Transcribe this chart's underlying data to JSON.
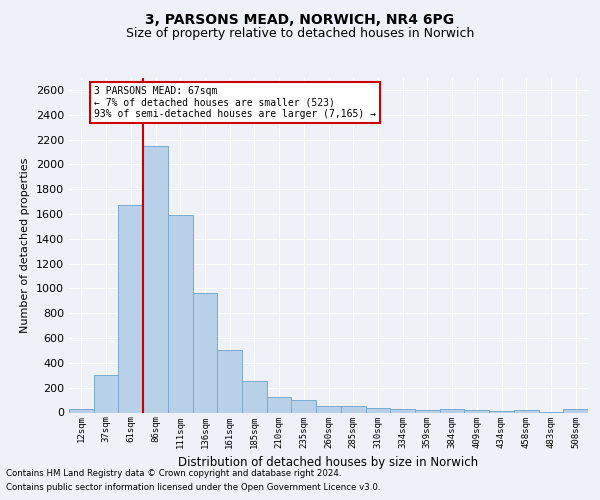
{
  "title": "3, PARSONS MEAD, NORWICH, NR4 6PG",
  "subtitle": "Size of property relative to detached houses in Norwich",
  "xlabel": "Distribution of detached houses by size in Norwich",
  "ylabel": "Number of detached properties",
  "footnote1": "Contains HM Land Registry data © Crown copyright and database right 2024.",
  "footnote2": "Contains public sector information licensed under the Open Government Licence v3.0.",
  "annotation_title": "3 PARSONS MEAD: 67sqm",
  "annotation_line1": "← 7% of detached houses are smaller (523)",
  "annotation_line2": "93% of semi-detached houses are larger (7,165) →",
  "bar_labels": [
    "12sqm",
    "37sqm",
    "61sqm",
    "86sqm",
    "111sqm",
    "136sqm",
    "161sqm",
    "185sqm",
    "210sqm",
    "235sqm",
    "260sqm",
    "285sqm",
    "310sqm",
    "334sqm",
    "359sqm",
    "384sqm",
    "409sqm",
    "434sqm",
    "458sqm",
    "483sqm",
    "508sqm"
  ],
  "bar_values": [
    25,
    300,
    1670,
    2150,
    1590,
    960,
    505,
    250,
    125,
    100,
    55,
    50,
    35,
    30,
    20,
    30,
    20,
    10,
    20,
    5,
    30
  ],
  "bar_color": "#b8d0e8",
  "bar_edge_color": "#7aaad0",
  "red_line_x": 2.5,
  "ylim": [
    0,
    2700
  ],
  "yticks": [
    0,
    200,
    400,
    600,
    800,
    1000,
    1200,
    1400,
    1600,
    1800,
    2000,
    2200,
    2400,
    2600
  ],
  "background_color": "#eef2f8",
  "grid_color": "#ffffff",
  "title_fontsize": 10,
  "subtitle_fontsize": 9,
  "annotation_box_color": "#ffffff",
  "annotation_box_edge": "#cc0000",
  "red_line_color": "#cc0000"
}
